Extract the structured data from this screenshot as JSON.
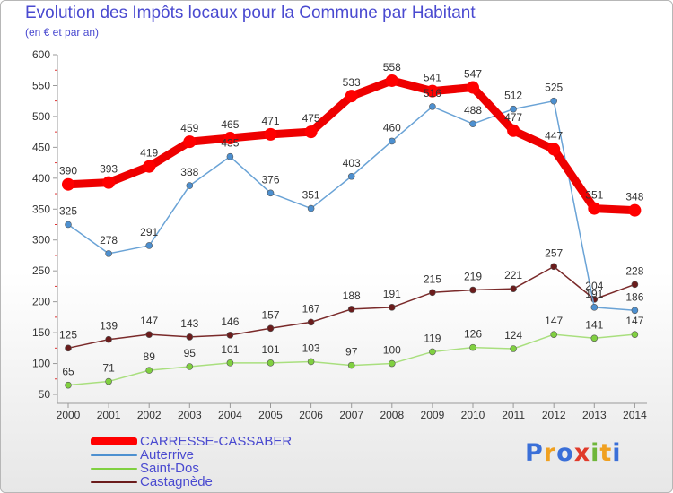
{
  "title": "Evolution des Impôts locaux pour la Commune par Habitant",
  "subtitle": "(en € et par an)",
  "logo": {
    "text": "Proxiti",
    "colors": [
      "#3a6fd8",
      "#f0a020",
      "#3a6fd8",
      "#e03a2a",
      "#6fb63a",
      "#f0a020",
      "#3a6fd8"
    ]
  },
  "chart_data": {
    "type": "line",
    "x": [
      "2000",
      "2001",
      "2002",
      "2003",
      "2004",
      "2005",
      "2006",
      "2007",
      "2008",
      "2009",
      "2010",
      "2011",
      "2012",
      "2013",
      "2014"
    ],
    "ylim": [
      50,
      600
    ],
    "yticks": [
      50,
      100,
      150,
      200,
      250,
      300,
      350,
      400,
      450,
      500,
      550,
      600
    ],
    "grid": false,
    "legend_position": "bottom-left",
    "series": [
      {
        "name": "CARRESSE-CASSABER",
        "color": "#ff0000",
        "line_color": "#ee0000",
        "values": [
          390,
          393,
          419,
          459,
          465,
          471,
          475,
          533,
          558,
          541,
          547,
          477,
          447,
          351,
          348
        ]
      },
      {
        "name": "Auterrive",
        "color": "#4d90d0",
        "line_color": "#6aa3d6",
        "values": [
          325,
          278,
          291,
          388,
          435,
          376,
          351,
          403,
          460,
          516,
          488,
          512,
          525,
          191,
          186
        ]
      },
      {
        "name": "Saint-Dos",
        "color": "#80d040",
        "line_color": "#a9df7e",
        "values": [
          65,
          71,
          89,
          95,
          101,
          101,
          103,
          97,
          100,
          119,
          126,
          124,
          147,
          141,
          147
        ]
      },
      {
        "name": "Castagnède",
        "color": "#6b1c1c",
        "line_color": "#7a2a2a",
        "values": [
          125,
          139,
          147,
          143,
          146,
          157,
          167,
          188,
          191,
          215,
          219,
          221,
          257,
          204,
          228
        ]
      }
    ],
    "data_labels": [
      [
        "390",
        "393",
        "419",
        "459",
        "465",
        "471",
        "475",
        "533",
        "558",
        "541",
        "547",
        "477",
        "447",
        "351",
        "348"
      ],
      [
        "325",
        "278",
        "291",
        "388",
        "435",
        "376",
        "351",
        "403",
        "460",
        "516",
        "488",
        "512",
        "525",
        "191",
        "186"
      ],
      [
        "65",
        "71",
        "89",
        "95",
        "101",
        "101",
        "103",
        "97",
        "100",
        "119",
        "126",
        "124",
        "147",
        "141",
        "147"
      ],
      [
        "125",
        "139",
        "147",
        "143",
        "146",
        "157",
        "167",
        "188",
        "191",
        "215",
        "219",
        "221",
        "257",
        "204",
        "228"
      ]
    ]
  }
}
